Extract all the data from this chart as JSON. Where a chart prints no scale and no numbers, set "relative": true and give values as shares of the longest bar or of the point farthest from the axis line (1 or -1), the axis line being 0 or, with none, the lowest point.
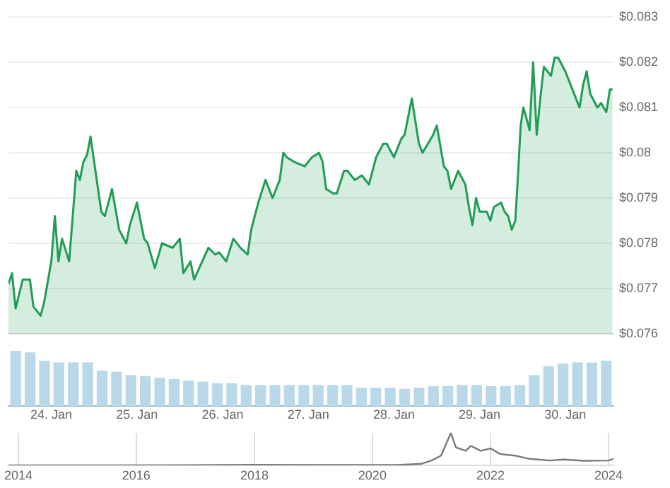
{
  "chart_data": [
    {
      "type": "area",
      "color": "#1f9d55",
      "grid": "y",
      "xlim": [
        "2024-01-23T12:00",
        "2024-01-30T13:30"
      ],
      "xticks": [
        {
          "value": "2024-01-24",
          "label": "24. Jan"
        },
        {
          "value": "2024-01-25",
          "label": "25. Jan"
        },
        {
          "value": "2024-01-26",
          "label": "26. Jan"
        },
        {
          "value": "2024-01-27",
          "label": "27. Jan"
        },
        {
          "value": "2024-01-28",
          "label": "28. Jan"
        },
        {
          "value": "2024-01-29",
          "label": "29. Jan"
        },
        {
          "value": "2024-01-30",
          "label": "30. Jan"
        }
      ],
      "ylim": [
        0.076,
        0.083
      ],
      "yticks": [
        {
          "value": 0.076,
          "label": "$0.076"
        },
        {
          "value": 0.077,
          "label": "$0.077"
        },
        {
          "value": 0.078,
          "label": "$0.078"
        },
        {
          "value": 0.079,
          "label": "$0.079"
        },
        {
          "value": 0.08,
          "label": "$0.08"
        },
        {
          "value": 0.081,
          "label": "$0.081"
        },
        {
          "value": 0.082,
          "label": "$0.082"
        },
        {
          "value": 0.083,
          "label": "$0.083"
        }
      ],
      "x": [
        "2024-01-23T12:00",
        "2024-01-23T13:00",
        "2024-01-23T14:00",
        "2024-01-23T16:00",
        "2024-01-23T18:00",
        "2024-01-23T19:00",
        "2024-01-23T21:00",
        "2024-01-23T22:00",
        "2024-01-24T00:00",
        "2024-01-24T01:00",
        "2024-01-24T02:00",
        "2024-01-24T03:00",
        "2024-01-24T05:00",
        "2024-01-24T07:00",
        "2024-01-24T08:00",
        "2024-01-24T09:00",
        "2024-01-24T10:00",
        "2024-01-24T11:00",
        "2024-01-24T12:00",
        "2024-01-24T14:00",
        "2024-01-24T15:00",
        "2024-01-24T17:00",
        "2024-01-24T19:00",
        "2024-01-24T21:00",
        "2024-01-24T22:00",
        "2024-01-25T00:00",
        "2024-01-25T02:00",
        "2024-01-25T03:00",
        "2024-01-25T05:00",
        "2024-01-25T07:00",
        "2024-01-25T10:00",
        "2024-01-25T12:00",
        "2024-01-25T13:00",
        "2024-01-25T15:00",
        "2024-01-25T16:00",
        "2024-01-25T18:00",
        "2024-01-25T20:00",
        "2024-01-25T22:00",
        "2024-01-25T23:00",
        "2024-01-26T01:00",
        "2024-01-26T03:00",
        "2024-01-26T05:00",
        "2024-01-26T07:00",
        "2024-01-26T08:00",
        "2024-01-26T10:00",
        "2024-01-26T12:00",
        "2024-01-26T14:00",
        "2024-01-26T16:00",
        "2024-01-26T17:00",
        "2024-01-26T18:00",
        "2024-01-26T20:00",
        "2024-01-26T23:00",
        "2024-01-27T01:00",
        "2024-01-27T03:00",
        "2024-01-27T04:00",
        "2024-01-27T05:00",
        "2024-01-27T07:00",
        "2024-01-27T08:00",
        "2024-01-27T10:00",
        "2024-01-27T11:00",
        "2024-01-27T13:00",
        "2024-01-27T15:00",
        "2024-01-27T17:00",
        "2024-01-27T19:00",
        "2024-01-27T21:00",
        "2024-01-27T22:00",
        "2024-01-28T00:00",
        "2024-01-28T02:00",
        "2024-01-28T03:00",
        "2024-01-28T05:00",
        "2024-01-28T07:00",
        "2024-01-28T08:00",
        "2024-01-28T11:00",
        "2024-01-28T12:00",
        "2024-01-28T14:00",
        "2024-01-28T15:00",
        "2024-01-28T16:00",
        "2024-01-28T18:00",
        "2024-01-28T20:00",
        "2024-01-28T21:00",
        "2024-01-28T22:00",
        "2024-01-28T23:00",
        "2024-01-29T00:00",
        "2024-01-29T02:00",
        "2024-01-29T03:00",
        "2024-01-29T04:00",
        "2024-01-29T06:00",
        "2024-01-29T07:00",
        "2024-01-29T08:00",
        "2024-01-29T09:00",
        "2024-01-29T10:00",
        "2024-01-29T10:45",
        "2024-01-29T11:30",
        "2024-01-29T12:15",
        "2024-01-29T13:00",
        "2024-01-29T14:00",
        "2024-01-29T15:00",
        "2024-01-29T16:00",
        "2024-01-29T17:00",
        "2024-01-29T18:00",
        "2024-01-29T19:00",
        "2024-01-29T20:00",
        "2024-01-29T21:00",
        "2024-01-29T22:00",
        "2024-01-30T00:00",
        "2024-01-30T01:00",
        "2024-01-30T03:00",
        "2024-01-30T04:00",
        "2024-01-30T05:00",
        "2024-01-30T06:00",
        "2024-01-30T07:00",
        "2024-01-30T09:00",
        "2024-01-30T10:00",
        "2024-01-30T11:30",
        "2024-01-30T12:30",
        "2024-01-30T13:15"
      ],
      "values": [
        0.0771,
        0.07734,
        0.07656,
        0.0772,
        0.0772,
        0.0766,
        0.0764,
        0.0767,
        0.0776,
        0.0786,
        0.0776,
        0.0781,
        0.0776,
        0.0796,
        0.0794,
        0.0798,
        0.07995,
        0.08036,
        0.0798,
        0.0787,
        0.0786,
        0.0792,
        0.0783,
        0.078,
        0.0784,
        0.0789,
        0.0781,
        0.078,
        0.07745,
        0.078,
        0.0779,
        0.0781,
        0.07734,
        0.0776,
        0.0772,
        0.07755,
        0.0779,
        0.07775,
        0.0778,
        0.0776,
        0.0781,
        0.0779,
        0.07775,
        0.0783,
        0.0789,
        0.0794,
        0.079,
        0.0794,
        0.08,
        0.0799,
        0.0798,
        0.0797,
        0.0799,
        0.08,
        0.0798,
        0.0792,
        0.0791,
        0.0791,
        0.0796,
        0.0796,
        0.0794,
        0.0795,
        0.0793,
        0.0799,
        0.0802,
        0.0802,
        0.0799,
        0.0803,
        0.0804,
        0.0812,
        0.0802,
        0.08,
        0.0804,
        0.0806,
        0.0797,
        0.0796,
        0.0792,
        0.0796,
        0.0793,
        0.0788,
        0.0784,
        0.079,
        0.0787,
        0.0787,
        0.0785,
        0.0788,
        0.0789,
        0.0787,
        0.0786,
        0.0783,
        0.0785,
        0.0795,
        0.0806,
        0.081,
        0.0808,
        0.0805,
        0.082,
        0.0804,
        0.0812,
        0.0819,
        0.0818,
        0.0817,
        0.0821,
        0.0821,
        0.0818,
        0.0816,
        0.0812,
        0.081,
        0.0815,
        0.0818,
        0.0813,
        0.081,
        0.0811,
        0.0809,
        0.0814,
        0.0814
      ]
    },
    {
      "type": "bar",
      "relative": true,
      "color": "#b9d9ea",
      "tick_labels": false,
      "categories": [
        null,
        null,
        null,
        null,
        null,
        null,
        null,
        null,
        null,
        null,
        null,
        null,
        null,
        null,
        null,
        null,
        null,
        null,
        null,
        null,
        null,
        null,
        null,
        null,
        null,
        null,
        null,
        null,
        null,
        null,
        null,
        null,
        null,
        null,
        null,
        null,
        null,
        null,
        null,
        null,
        null,
        null
      ],
      "values": [
        1,
        0.97,
        0.82,
        0.79,
        0.79,
        0.79,
        0.64,
        0.62,
        0.56,
        0.54,
        0.51,
        0.49,
        0.46,
        0.44,
        0.41,
        0.41,
        0.38,
        0.38,
        0.38,
        0.38,
        0.38,
        0.38,
        0.38,
        0.38,
        0.33,
        0.33,
        0.33,
        0.31,
        0.33,
        0.36,
        0.36,
        0.38,
        0.38,
        0.36,
        0.36,
        0.38,
        0.56,
        0.72,
        0.77,
        0.79,
        0.79,
        0.82
      ]
    },
    {
      "type": "line",
      "relative": true,
      "color": "#7a7a7a",
      "grid": "x",
      "tick_labels": "x",
      "xlim": [
        "2013-11",
        "2024-02"
      ],
      "xticks": [
        "2014",
        "2016",
        "2018",
        "2020",
        "2022",
        "2024"
      ],
      "x": [
        "2013-11",
        "2015-06",
        "2017-06",
        "2018-01",
        "2019-01",
        "2020-06",
        "2020-11",
        "2021-01",
        "2021-03",
        "2021-05",
        "2021-06",
        "2021-08",
        "2021-09",
        "2021-11",
        "2022-01",
        "2022-03",
        "2022-06",
        "2022-09",
        "2023-01",
        "2023-04",
        "2023-08",
        "2024-01",
        "2024-02"
      ],
      "values": [
        0,
        0,
        0.01,
        0.02,
        0.01,
        0.01,
        0.05,
        0.15,
        0.3,
        1,
        0.55,
        0.45,
        0.6,
        0.45,
        0.52,
        0.35,
        0.3,
        0.2,
        0.15,
        0.18,
        0.14,
        0.15,
        0.2
      ]
    }
  ]
}
